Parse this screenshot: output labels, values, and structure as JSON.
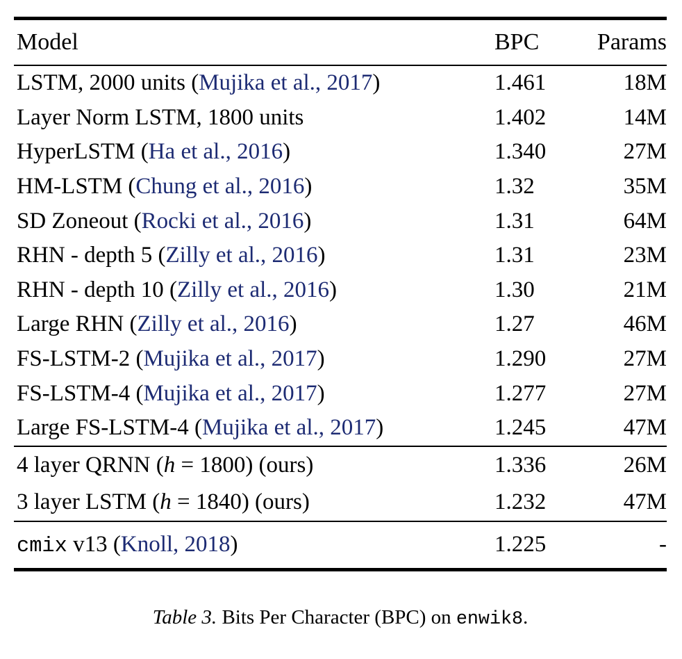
{
  "colors": {
    "background": "#ffffff",
    "text": "#000000",
    "citation_link": "#1d2b73",
    "rule": "#000000"
  },
  "table": {
    "columns": [
      "Model",
      "BPC",
      "Params"
    ],
    "sections": [
      {
        "rows": [
          {
            "model": [
              {
                "t": "LSTM, 2000 units ("
              },
              {
                "t": "Mujika et al., 2017",
                "s": "cite"
              },
              {
                "t": ")"
              }
            ],
            "bpc": "1.461",
            "params": "18M"
          },
          {
            "model": [
              {
                "t": "Layer Norm LSTM, 1800 units"
              }
            ],
            "bpc": "1.402",
            "params": "14M"
          },
          {
            "model": [
              {
                "t": "HyperLSTM ("
              },
              {
                "t": "Ha et al., 2016",
                "s": "cite"
              },
              {
                "t": ")"
              }
            ],
            "bpc": "1.340",
            "params": "27M"
          },
          {
            "model": [
              {
                "t": "HM-LSTM ("
              },
              {
                "t": "Chung et al., 2016",
                "s": "cite"
              },
              {
                "t": ")"
              }
            ],
            "bpc": "1.32",
            "params": "35M"
          },
          {
            "model": [
              {
                "t": "SD Zoneout ("
              },
              {
                "t": "Rocki et al., 2016",
                "s": "cite"
              },
              {
                "t": ")"
              }
            ],
            "bpc": "1.31",
            "params": "64M"
          },
          {
            "model": [
              {
                "t": "RHN - depth 5 ("
              },
              {
                "t": "Zilly et al., 2016",
                "s": "cite"
              },
              {
                "t": ")"
              }
            ],
            "bpc": "1.31",
            "params": "23M"
          },
          {
            "model": [
              {
                "t": "RHN - depth 10 ("
              },
              {
                "t": "Zilly et al., 2016",
                "s": "cite"
              },
              {
                "t": ")"
              }
            ],
            "bpc": "1.30",
            "params": "21M"
          },
          {
            "model": [
              {
                "t": "Large RHN ("
              },
              {
                "t": "Zilly et al., 2016",
                "s": "cite"
              },
              {
                "t": ")"
              }
            ],
            "bpc": "1.27",
            "params": "46M"
          },
          {
            "model": [
              {
                "t": "FS-LSTM-2 ("
              },
              {
                "t": "Mujika et al., 2017",
                "s": "cite"
              },
              {
                "t": ")"
              }
            ],
            "bpc": "1.290",
            "params": "27M"
          },
          {
            "model": [
              {
                "t": "FS-LSTM-4 ("
              },
              {
                "t": "Mujika et al., 2017",
                "s": "cite"
              },
              {
                "t": ")"
              }
            ],
            "bpc": "1.277",
            "params": "27M"
          },
          {
            "model": [
              {
                "t": "Large FS-LSTM-4 ("
              },
              {
                "t": "Mujika et al., 2017",
                "s": "cite"
              },
              {
                "t": ")"
              }
            ],
            "bpc": "1.245",
            "params": "47M"
          }
        ]
      },
      {
        "rows": [
          {
            "model": [
              {
                "t": "4 layer QRNN ("
              },
              {
                "t": "h",
                "s": "math"
              },
              {
                "t": " = 1800) (ours)"
              }
            ],
            "bpc": "1.336",
            "params": "26M"
          },
          {
            "model": [
              {
                "t": "3 layer LSTM ("
              },
              {
                "t": "h",
                "s": "math"
              },
              {
                "t": " = 1840) (ours)"
              }
            ],
            "bpc": "1.232",
            "params": "47M"
          }
        ]
      },
      {
        "rows": [
          {
            "model": [
              {
                "t": "cmix",
                "s": "mono"
              },
              {
                "t": " v13 ("
              },
              {
                "t": "Knoll, 2018",
                "s": "cite"
              },
              {
                "t": ")"
              }
            ],
            "bpc": "1.225",
            "params": "-"
          }
        ]
      }
    ],
    "caption_segments": [
      {
        "t": "Table 3.",
        "s": "italic"
      },
      {
        "t": " Bits Per Character (BPC) on "
      },
      {
        "t": "enwik8",
        "s": "mono"
      },
      {
        "t": "."
      }
    ]
  }
}
